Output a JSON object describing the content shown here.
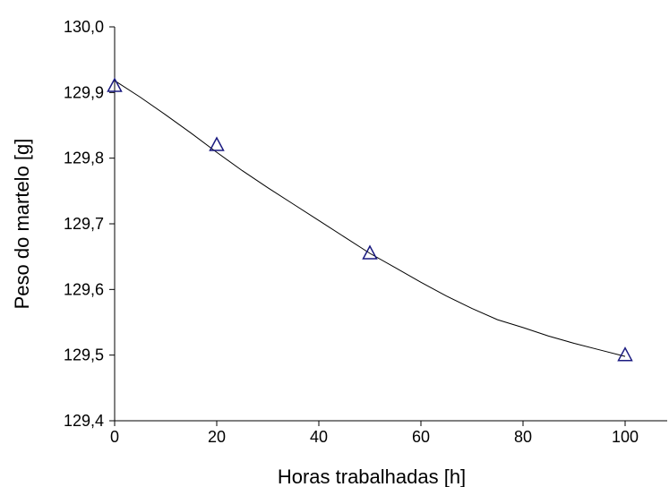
{
  "chart_data": {
    "type": "scatter",
    "title": "",
    "xlabel": "Horas trabalhadas [h]",
    "ylabel": "Peso do martelo [g]",
    "xlim": [
      0,
      100
    ],
    "ylim": [
      129.4,
      130.0
    ],
    "xticks": [
      0,
      20,
      40,
      60,
      80,
      100
    ],
    "xtick_labels": [
      "0",
      "20",
      "40",
      "60",
      "80",
      "100"
    ],
    "yticks": [
      129.4,
      129.5,
      129.6,
      129.7,
      129.8,
      129.9,
      130.0
    ],
    "ytick_labels": [
      "129,4",
      "129,5",
      "129,6",
      "129,7",
      "129,8",
      "129,9",
      "130,0"
    ],
    "grid": false,
    "legend": "none",
    "series": [
      {
        "marker": "triangle",
        "color": "#1a1a80",
        "x": [
          0,
          20,
          50,
          100
        ],
        "y": [
          129.91,
          129.82,
          129.655,
          129.5
        ]
      }
    ],
    "trendline": {
      "type": "polynomial",
      "color": "#000000",
      "x": [
        0,
        5,
        10,
        15,
        20,
        25,
        30,
        35,
        40,
        45,
        50,
        55,
        60,
        65,
        70,
        75,
        80,
        85,
        90,
        95,
        100
      ],
      "y": [
        129.918,
        129.893,
        129.866,
        129.838,
        129.809,
        129.781,
        129.755,
        129.73,
        129.705,
        129.68,
        129.655,
        129.633,
        129.611,
        129.59,
        129.571,
        129.554,
        129.542,
        129.529,
        129.518,
        129.508,
        129.498
      ]
    }
  }
}
